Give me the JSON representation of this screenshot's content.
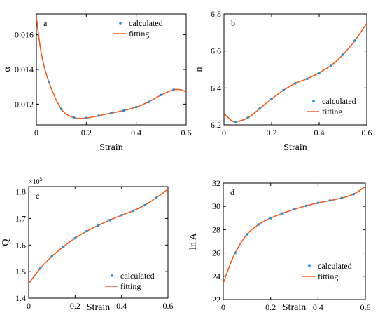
{
  "colors": {
    "fit": "#ee5a1d",
    "point": "#1f8fd9",
    "axis": "#000000"
  },
  "chart_data": [
    {
      "type": "line",
      "panel": "a",
      "xlabel": "Strain",
      "ylabel": "α",
      "xlim": [
        0,
        0.6
      ],
      "ylim": [
        0.0108,
        0.0172
      ],
      "xticks": [
        0,
        0.2,
        0.4,
        0.6
      ],
      "xtick_labels": [
        "0",
        "0.2",
        "0.4",
        "0.6"
      ],
      "yticks": [
        0.012,
        0.014,
        0.016
      ],
      "ytick_labels": [
        "0.012",
        "0.014",
        "0.016"
      ],
      "legend": {
        "position": "top-right",
        "items": [
          "calculated",
          "fitting"
        ]
      },
      "series": [
        {
          "name": "calculated",
          "kind": "points",
          "x": [
            0.05,
            0.1,
            0.15,
            0.2,
            0.25,
            0.3,
            0.35,
            0.4,
            0.45,
            0.5,
            0.55
          ],
          "y": [
            0.01328,
            0.01172,
            0.01122,
            0.0112,
            0.01133,
            0.01148,
            0.01163,
            0.01183,
            0.01213,
            0.01253,
            0.01283
          ]
        },
        {
          "name": "fitting",
          "kind": "line",
          "x": [
            0,
            0.02,
            0.05,
            0.1,
            0.15,
            0.2,
            0.25,
            0.3,
            0.35,
            0.4,
            0.45,
            0.5,
            0.55,
            0.58,
            0.6
          ],
          "y": [
            0.017,
            0.0149,
            0.01328,
            0.01172,
            0.01122,
            0.0112,
            0.01133,
            0.01148,
            0.01163,
            0.01183,
            0.01213,
            0.01253,
            0.01283,
            0.01282,
            0.01268
          ]
        }
      ]
    },
    {
      "type": "line",
      "panel": "b",
      "xlabel": "Strain",
      "ylabel": "n",
      "xlim": [
        0,
        0.6
      ],
      "ylim": [
        6.2,
        6.8
      ],
      "xticks": [
        0,
        0.2,
        0.4,
        0.6
      ],
      "xtick_labels": [
        "0",
        "0.2",
        "0.4",
        "0.6"
      ],
      "yticks": [
        6.2,
        6.4,
        6.6,
        6.8
      ],
      "ytick_labels": [
        "6.2",
        "6.4",
        "6.6",
        "6.8"
      ],
      "legend": {
        "position": "bottom-right",
        "items": [
          "calculated",
          "fitting"
        ]
      },
      "series": [
        {
          "name": "calculated",
          "kind": "points",
          "x": [
            0.05,
            0.1,
            0.15,
            0.2,
            0.25,
            0.3,
            0.35,
            0.4,
            0.45,
            0.5,
            0.55
          ],
          "y": [
            6.217,
            6.238,
            6.288,
            6.34,
            6.388,
            6.425,
            6.45,
            6.482,
            6.522,
            6.58,
            6.656
          ]
        },
        {
          "name": "fitting",
          "kind": "line",
          "x": [
            0,
            0.03,
            0.05,
            0.1,
            0.15,
            0.2,
            0.25,
            0.3,
            0.35,
            0.4,
            0.45,
            0.5,
            0.55,
            0.6
          ],
          "y": [
            6.262,
            6.225,
            6.217,
            6.238,
            6.288,
            6.34,
            6.388,
            6.425,
            6.45,
            6.482,
            6.522,
            6.58,
            6.656,
            6.75
          ]
        }
      ]
    },
    {
      "type": "line",
      "panel": "c",
      "xlabel": "Strain",
      "ylabel": "Q",
      "y_exponent": "×10",
      "y_exponent_power": "5",
      "xlim": [
        0,
        0.6
      ],
      "ylim": [
        1.4,
        1.82
      ],
      "xticks": [
        0,
        0.2,
        0.4,
        0.6
      ],
      "xtick_labels": [
        "0",
        "0.2",
        "0.4",
        "0.6"
      ],
      "yticks": [
        1.4,
        1.5,
        1.6,
        1.7,
        1.8
      ],
      "ytick_labels": [
        "1.4",
        "1.5",
        "1.6",
        "1.7",
        "1.8"
      ],
      "legend": {
        "position": "bottom-right",
        "items": [
          "calculated",
          "fitting"
        ]
      },
      "series": [
        {
          "name": "calculated",
          "kind": "points",
          "x": [
            0.05,
            0.1,
            0.15,
            0.2,
            0.25,
            0.3,
            0.35,
            0.4,
            0.45,
            0.5,
            0.55
          ],
          "y": [
            1.512,
            1.557,
            1.594,
            1.626,
            1.652,
            1.674,
            1.694,
            1.712,
            1.729,
            1.75,
            1.778
          ]
        },
        {
          "name": "fitting",
          "kind": "line",
          "x": [
            0,
            0.05,
            0.1,
            0.15,
            0.2,
            0.25,
            0.3,
            0.35,
            0.4,
            0.45,
            0.5,
            0.55,
            0.6
          ],
          "y": [
            1.455,
            1.512,
            1.557,
            1.594,
            1.626,
            1.652,
            1.674,
            1.694,
            1.712,
            1.729,
            1.75,
            1.778,
            1.81
          ]
        }
      ]
    },
    {
      "type": "line",
      "panel": "d",
      "xlabel": "Strain",
      "ylabel": "ln A",
      "xlim": [
        0,
        0.6
      ],
      "ylim": [
        22,
        32
      ],
      "xticks": [
        0,
        0.2,
        0.4,
        0.6
      ],
      "xtick_labels": [
        "0",
        "0.2",
        "0.4",
        "0.6"
      ],
      "yticks": [
        22,
        24,
        26,
        28,
        30,
        32
      ],
      "ytick_labels": [
        "22",
        "24",
        "26",
        "28",
        "30",
        "32"
      ],
      "legend": {
        "position": "bottom-right",
        "items": [
          "calculated",
          "fitting"
        ]
      },
      "series": [
        {
          "name": "calculated",
          "kind": "points",
          "x": [
            0.05,
            0.1,
            0.15,
            0.2,
            0.25,
            0.3,
            0.35,
            0.4,
            0.45,
            0.5,
            0.55
          ],
          "y": [
            26.0,
            27.6,
            28.45,
            29.0,
            29.4,
            29.75,
            30.05,
            30.3,
            30.5,
            30.72,
            31.05
          ]
        },
        {
          "name": "fitting",
          "kind": "line",
          "x": [
            0,
            0.025,
            0.05,
            0.1,
            0.15,
            0.2,
            0.25,
            0.3,
            0.35,
            0.4,
            0.45,
            0.5,
            0.55,
            0.6
          ],
          "y": [
            23.4,
            24.8,
            26.0,
            27.6,
            28.45,
            29.0,
            29.4,
            29.75,
            30.05,
            30.3,
            30.5,
            30.72,
            31.05,
            31.7
          ]
        }
      ]
    }
  ]
}
